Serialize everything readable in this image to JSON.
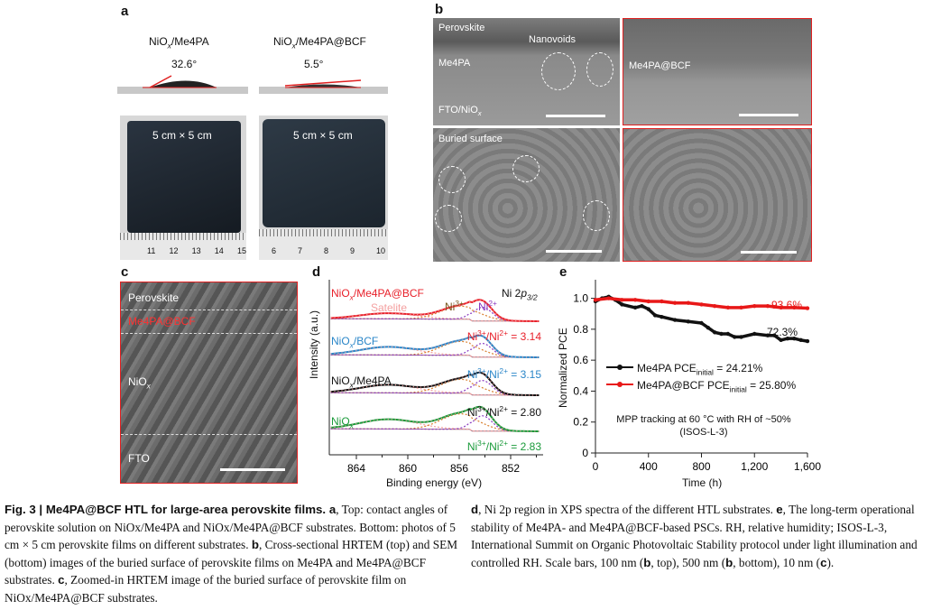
{
  "panels": {
    "a": {
      "label": "a",
      "left_title": {
        "pre": "NiO",
        "sub": "x",
        "post": "/Me4PA"
      },
      "right_title": {
        "pre": "NiO",
        "sub": "x",
        "post": "/Me4PA@BCF"
      },
      "left_angle": "32.6°",
      "right_angle": "5.5°",
      "film_size": "5 cm × 5 cm",
      "left_ruler": [
        "11",
        "12",
        "13",
        "14",
        "15"
      ],
      "right_ruler": [
        "6",
        "7",
        "8",
        "9",
        "10"
      ]
    },
    "b": {
      "label": "b",
      "perovskite": "Perovskite",
      "nanovoids": "Nanovoids",
      "me4pa": "Me4PA",
      "fto": {
        "pre": "FTO/NiO",
        "sub": "x"
      },
      "me4pa_bcf": "Me4PA@BCF",
      "buried": "Buried surface"
    },
    "c": {
      "label": "c",
      "perovskite": "Perovskite",
      "me4pa_bcf": "Me4PA@BCF",
      "nio": {
        "pre": "NiO",
        "sub": "x"
      },
      "fto": "FTO"
    },
    "d": {
      "label": "d",
      "ylabel": "Intensity (a.u.)",
      "xlabel": "Binding energy (eV)",
      "region": {
        "pre": "Ni 2",
        "it": "p",
        "sub": "3/2"
      },
      "satellite": "Satelite",
      "ni3": "Ni",
      "ni3_sup": "3+",
      "ni2": "Ni",
      "ni2_sup": "2+"
    },
    "e": {
      "label": "e"
    }
  },
  "chart_data": [
    {
      "type": "line",
      "title": "Ni 2p3/2 XPS spectra",
      "xlabel": "Binding energy (eV)",
      "ylabel": "Intensity (a.u.)",
      "xlim": [
        866,
        849.6
      ],
      "xticks": [
        "864",
        "860",
        "856",
        "852"
      ],
      "colors": {
        "satellite": "#f4a0a0",
        "ni3": "#d98030",
        "ni2": "#8a3ac0"
      },
      "series": [
        {
          "name": "NiOx/Me4PA@BCF",
          "label": {
            "pre": "NiO",
            "sub": "x",
            "post": "/Me4PA@BCF"
          },
          "color": "#e8202a",
          "ratio": "3.14",
          "peaks": {
            "satellite": 0.35,
            "ni3": 0.8,
            "ni2": 0.85
          }
        },
        {
          "name": "NiOx/BCF",
          "label": {
            "pre": "NiO",
            "sub": "x",
            "post": "/BCF"
          },
          "color": "#2a86c8",
          "ratio": "3.15",
          "peaks": {
            "satellite": 0.5,
            "ni3": 0.85,
            "ni2": 0.85
          }
        },
        {
          "name": "NiOx/Me4PA",
          "label": {
            "pre": "NiO",
            "sub": "x",
            "post": "/Me4PA"
          },
          "color": "#111111",
          "ratio": "2.80",
          "peaks": {
            "satellite": 0.5,
            "ni3": 0.85,
            "ni2": 0.9
          }
        },
        {
          "name": "NiOx",
          "label": {
            "pre": "NiO",
            "sub": "x",
            "post": ""
          },
          "color": "#1a9a3a",
          "ratio": "2.83",
          "peaks": {
            "satellite": 0.6,
            "ni3": 0.95,
            "ni2": 0.95
          }
        }
      ],
      "ratio_label": {
        "a": "Ni",
        "a_sup": "3+",
        "b": "/Ni",
        "b_sup": "2+",
        "eq": " = "
      }
    },
    {
      "type": "line",
      "xlabel": "Time (h)",
      "ylabel": "Normalized PCE",
      "xlim": [
        0,
        1600
      ],
      "ylim": [
        0,
        1.12
      ],
      "xticks": [
        "0",
        "400",
        "800",
        "1,200",
        "1,600"
      ],
      "xtick_values": [
        0,
        400,
        800,
        1200,
        1600
      ],
      "yticks": [
        "0",
        "0.2",
        "0.4",
        "0.6",
        "0.8",
        "1.0"
      ],
      "ytick_values": [
        0,
        0.2,
        0.4,
        0.6,
        0.8,
        1.0
      ],
      "annotation": [
        "MPP tracking at 60 °C with RH of ~50%",
        "(ISOS-L-3)"
      ],
      "series": [
        {
          "name": "Me4PA",
          "legend": {
            "pre": "Me4PA PCE",
            "sub": "initial",
            "post": " = 24.21%"
          },
          "color": "#111111",
          "final_label": "72.3%",
          "points": [
            [
              0,
              0.98
            ],
            [
              50,
              1.0
            ],
            [
              100,
              1.01
            ],
            [
              150,
              0.99
            ],
            [
              200,
              0.96
            ],
            [
              300,
              0.94
            ],
            [
              350,
              0.95
            ],
            [
              400,
              0.93
            ],
            [
              450,
              0.89
            ],
            [
              500,
              0.88
            ],
            [
              600,
              0.86
            ],
            [
              700,
              0.85
            ],
            [
              800,
              0.84
            ],
            [
              850,
              0.81
            ],
            [
              900,
              0.78
            ],
            [
              950,
              0.77
            ],
            [
              1000,
              0.77
            ],
            [
              1050,
              0.75
            ],
            [
              1100,
              0.75
            ],
            [
              1200,
              0.77
            ],
            [
              1300,
              0.76
            ],
            [
              1350,
              0.76
            ],
            [
              1400,
              0.73
            ],
            [
              1450,
              0.74
            ],
            [
              1500,
              0.74
            ],
            [
              1550,
              0.73
            ],
            [
              1600,
              0.723
            ]
          ]
        },
        {
          "name": "Me4PA@BCF",
          "legend": {
            "pre": "Me4PA@BCF PCE",
            "sub": "initial",
            "post": " = 25.80%"
          },
          "color": "#e81818",
          "final_label": "93.6%",
          "points": [
            [
              0,
              0.99
            ],
            [
              100,
              1.0
            ],
            [
              200,
              0.99
            ],
            [
              300,
              0.99
            ],
            [
              400,
              0.98
            ],
            [
              500,
              0.98
            ],
            [
              600,
              0.97
            ],
            [
              700,
              0.97
            ],
            [
              800,
              0.96
            ],
            [
              900,
              0.95
            ],
            [
              1000,
              0.94
            ],
            [
              1100,
              0.94
            ],
            [
              1200,
              0.95
            ],
            [
              1300,
              0.95
            ],
            [
              1400,
              0.94
            ],
            [
              1500,
              0.94
            ],
            [
              1600,
              0.936
            ]
          ]
        }
      ]
    }
  ],
  "caption": {
    "fig": "Fig. 3 | ",
    "title": "Me4PA@BCF HTL for large-area perovskite films. ",
    "a": "a",
    "a_text": ", Top: contact angles of perovskite solution on NiOx/Me4PA and NiOx/Me4PA@BCF substrates. Bottom: photos of 5 cm × 5 cm perovskite films on different substrates. ",
    "b": "b",
    "b_text": ", Cross-sectional HRTEM (top) and SEM (bottom) images of the buried surface of perovskite films on Me4PA and Me4PA@BCF substrates. ",
    "c": "c",
    "c_text": ", Zoomed-in HRTEM image of the buried surface of perovskite film on NiOx/Me4PA@BCF substrates.",
    "d": "d",
    "d_text": ", Ni 2p region in XPS spectra of the different HTL substrates. ",
    "e": "e",
    "e_text": ", The long-term operational stability of Me4PA- and Me4PA@BCF-based PSCs. RH, relative humidity; ISOS-L-3, International Summit on Organic Photovoltaic Stability protocol under light illumination and controlled RH. Scale bars, 100 nm (",
    "b2": "b",
    "e_text2": ", top), 500 nm (",
    "b3": "b",
    "e_text3": ", bottom), 10 nm (",
    "c2": "c",
    "e_text4": ")."
  }
}
